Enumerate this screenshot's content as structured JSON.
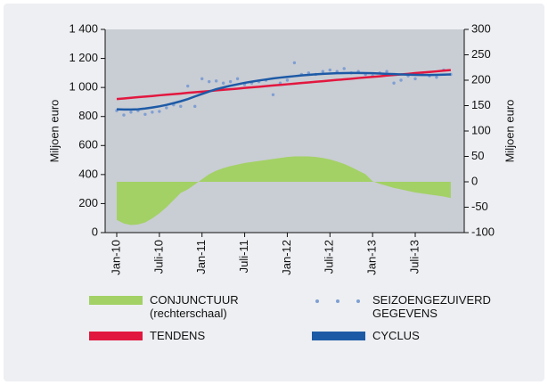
{
  "chart_data": {
    "type": "combo",
    "categories": [
      "Jan-10",
      null,
      null,
      null,
      null,
      null,
      "Juli-10",
      null,
      null,
      null,
      null,
      null,
      "Jan-11",
      null,
      null,
      null,
      null,
      null,
      "Juli-11",
      null,
      null,
      null,
      null,
      null,
      "Jan-12",
      null,
      null,
      null,
      null,
      null,
      "Juli-12",
      null,
      null,
      null,
      null,
      null,
      "Jan-13",
      null,
      null,
      null,
      null,
      null,
      "Juli-13",
      null,
      null,
      null,
      null,
      null
    ],
    "ylabel": "Miljoen euro",
    "y2label": "Miljoen euro",
    "ylim": [
      0,
      1400
    ],
    "yticks": [
      0,
      200,
      400,
      600,
      800,
      {
        "value": 1000,
        "label": "1 000"
      },
      {
        "value": 1200,
        "label": "1 200"
      },
      {
        "value": 1400,
        "label": "1 400"
      }
    ],
    "y2lim": [
      -100,
      300
    ],
    "y2ticks": [
      -100,
      -50,
      0,
      50,
      100,
      150,
      200,
      250,
      300
    ],
    "series": [
      {
        "name": "CONJUNCTUUR (rechterschaal)",
        "type": "area",
        "axis": "y2",
        "color": "#a3d165",
        "values": [
          -75,
          -82,
          -85,
          -84,
          -80,
          -72,
          -62,
          -50,
          -36,
          -22,
          -15,
          -5,
          5,
          15,
          22,
          27,
          31,
          34,
          37,
          39,
          41,
          43,
          45,
          47,
          49,
          50,
          50,
          50,
          49,
          47,
          44,
          40,
          35,
          29,
          22,
          15,
          1,
          -4,
          -8,
          -12,
          -15,
          -18,
          -21,
          -23,
          -25,
          -27,
          -29,
          -32
        ]
      },
      {
        "name": "SEIZOENGEZUIVERD GEGEVENS",
        "type": "scatter",
        "color": "#7f9fd2",
        "values": [
          840,
          810,
          830,
          840,
          815,
          830,
          835,
          860,
          880,
          870,
          1010,
          870,
          1060,
          1040,
          1045,
          1030,
          1040,
          1060,
          1020,
          1030,
          1040,
          1050,
          950,
          1030,
          1050,
          1170,
          1090,
          1100,
          1090,
          1110,
          1120,
          1110,
          1130,
          1100,
          1110,
          1090,
          1080,
          1100,
          1110,
          1030,
          1050,
          1080,
          1060,
          1090,
          1080,
          1070,
          1120,
          1090
        ]
      },
      {
        "name": "TENDENS",
        "type": "line",
        "color": "#e2173f",
        "values": [
          920,
          924,
          929,
          933,
          937,
          941,
          946,
          950,
          954,
          958,
          963,
          967,
          971,
          975,
          980,
          984,
          988,
          992,
          997,
          1001,
          1005,
          1009,
          1014,
          1018,
          1022,
          1026,
          1031,
          1035,
          1039,
          1043,
          1048,
          1052,
          1056,
          1060,
          1065,
          1069,
          1073,
          1077,
          1082,
          1086,
          1090,
          1094,
          1099,
          1103,
          1107,
          1111,
          1116,
          1120
        ]
      },
      {
        "name": "CYCLUS",
        "type": "line",
        "color": "#1d5aa6",
        "values": [
          850,
          848,
          848,
          850,
          855,
          862,
          870,
          880,
          892,
          905,
          920,
          938,
          955,
          972,
          988,
          1000,
          1012,
          1022,
          1032,
          1040,
          1048,
          1055,
          1062,
          1068,
          1073,
          1078,
          1083,
          1087,
          1091,
          1094,
          1096,
          1098,
          1099,
          1100,
          1100,
          1099,
          1098,
          1096,
          1094,
          1092,
          1090,
          1088,
          1087,
          1086,
          1086,
          1087,
          1088,
          1090
        ]
      }
    ]
  }
}
